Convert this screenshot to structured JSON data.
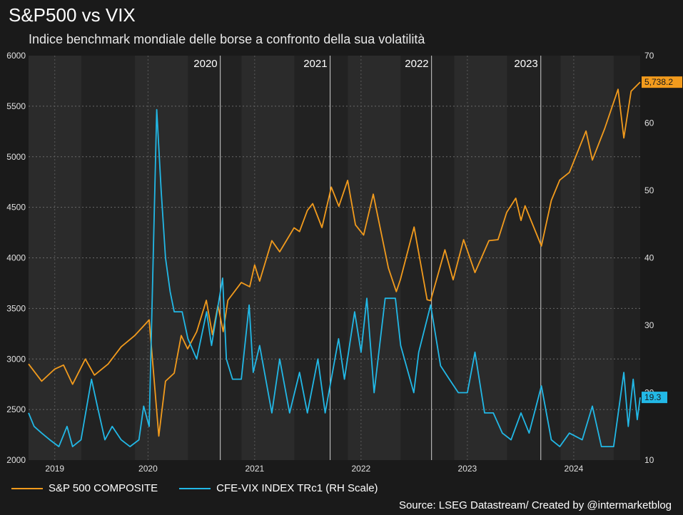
{
  "chart_data": {
    "type": "line",
    "title": "S&P500 vs VIX",
    "subtitle": "Indice benchmark mondiale delle borse a confronto della sua volatilità",
    "source": "Source: LSEG Datastream/ Created by @intermarketblog",
    "left_axis": {
      "ylim": [
        2000,
        6000
      ],
      "ticks": [
        "6000",
        "5500",
        "5000",
        "4500",
        "4000",
        "3500",
        "3000",
        "2500",
        "2000"
      ]
    },
    "right_axis": {
      "ylim": [
        10,
        70
      ],
      "ticks": [
        "70",
        "60",
        "50",
        "40",
        "30",
        "20",
        "10"
      ]
    },
    "x_range": [
      "2019-01-01",
      "2024-09-30"
    ],
    "x_ticks": [
      "2019",
      "2020",
      "2021",
      "2022",
      "2023",
      "2024"
    ],
    "x_tick_dates": [
      "2019-04-01",
      "2020-02-15",
      "2021-02-15",
      "2022-02-15",
      "2023-02-15",
      "2024-02-15"
    ],
    "shaded_regions": [
      {
        "from": "2019-01-01",
        "to": "2019-07-01"
      },
      {
        "from": "2020-01-01",
        "to": "2020-07-01"
      },
      {
        "from": "2021-01-01",
        "to": "2021-07-01"
      },
      {
        "from": "2022-01-01",
        "to": "2022-07-01"
      },
      {
        "from": "2023-01-01",
        "to": "2023-07-01"
      },
      {
        "from": "2024-01-01",
        "to": "2024-07-01"
      }
    ],
    "vertical_lines": [
      {
        "date": "2020-10-20",
        "label": "2020"
      },
      {
        "date": "2021-11-01",
        "label": "2021"
      },
      {
        "date": "2022-10-15",
        "label": "2022"
      },
      {
        "date": "2023-10-25",
        "label": "2023"
      }
    ],
    "grid": true,
    "series": [
      {
        "name": "S&P 500 COMPOSITE",
        "axis": "left",
        "color": "#f29b1d",
        "last_label": "5,738.2",
        "points": [
          [
            "2019-01-01",
            2950
          ],
          [
            "2019-02-15",
            2780
          ],
          [
            "2019-04-01",
            2900
          ],
          [
            "2019-05-01",
            2940
          ],
          [
            "2019-06-01",
            2750
          ],
          [
            "2019-07-15",
            3000
          ],
          [
            "2019-08-15",
            2840
          ],
          [
            "2019-10-01",
            2950
          ],
          [
            "2019-11-15",
            3120
          ],
          [
            "2019-12-31",
            3230
          ],
          [
            "2020-02-19",
            3386
          ],
          [
            "2020-03-23",
            2237
          ],
          [
            "2020-04-15",
            2780
          ],
          [
            "2020-05-15",
            2860
          ],
          [
            "2020-06-08",
            3232
          ],
          [
            "2020-06-30",
            3100
          ],
          [
            "2020-07-31",
            3270
          ],
          [
            "2020-09-02",
            3580
          ],
          [
            "2020-09-23",
            3240
          ],
          [
            "2020-10-12",
            3530
          ],
          [
            "2020-10-30",
            3270
          ],
          [
            "2020-11-15",
            3580
          ],
          [
            "2020-12-31",
            3756
          ],
          [
            "2021-01-29",
            3714
          ],
          [
            "2021-02-15",
            3930
          ],
          [
            "2021-03-04",
            3770
          ],
          [
            "2021-04-15",
            4170
          ],
          [
            "2021-05-12",
            4060
          ],
          [
            "2021-06-30",
            4297
          ],
          [
            "2021-07-19",
            4260
          ],
          [
            "2021-08-15",
            4470
          ],
          [
            "2021-09-02",
            4536
          ],
          [
            "2021-10-04",
            4300
          ],
          [
            "2021-11-05",
            4700
          ],
          [
            "2021-12-01",
            4510
          ],
          [
            "2021-12-31",
            4766
          ],
          [
            "2022-01-27",
            4326
          ],
          [
            "2022-02-24",
            4225
          ],
          [
            "2022-03-29",
            4630
          ],
          [
            "2022-05-20",
            3900
          ],
          [
            "2022-06-16",
            3666
          ],
          [
            "2022-06-30",
            3785
          ],
          [
            "2022-08-16",
            4305
          ],
          [
            "2022-09-30",
            3585
          ],
          [
            "2022-10-12",
            3577
          ],
          [
            "2022-11-30",
            4080
          ],
          [
            "2022-12-28",
            3783
          ],
          [
            "2023-02-02",
            4180
          ],
          [
            "2023-03-13",
            3855
          ],
          [
            "2023-04-30",
            4170
          ],
          [
            "2023-05-31",
            4180
          ],
          [
            "2023-06-30",
            4450
          ],
          [
            "2023-07-31",
            4590
          ],
          [
            "2023-08-18",
            4370
          ],
          [
            "2023-09-01",
            4515
          ],
          [
            "2023-10-27",
            4117
          ],
          [
            "2023-11-30",
            4568
          ],
          [
            "2023-12-29",
            4770
          ],
          [
            "2024-01-31",
            4845
          ],
          [
            "2024-03-28",
            5254
          ],
          [
            "2024-04-19",
            4967
          ],
          [
            "2024-05-31",
            5277
          ],
          [
            "2024-07-16",
            5667
          ],
          [
            "2024-08-05",
            5186
          ],
          [
            "2024-08-30",
            5648
          ],
          [
            "2024-09-30",
            5738
          ]
        ]
      },
      {
        "name": "CFE-VIX INDEX TRc1 (RH Scale)",
        "axis": "right",
        "color": "#22b8e6",
        "last_label": "19.3",
        "points": [
          [
            "2019-01-01",
            17
          ],
          [
            "2019-01-20",
            15
          ],
          [
            "2019-02-15",
            14
          ],
          [
            "2019-03-15",
            13
          ],
          [
            "2019-04-15",
            12
          ],
          [
            "2019-05-13",
            15
          ],
          [
            "2019-06-01",
            12
          ],
          [
            "2019-06-30",
            13
          ],
          [
            "2019-08-05",
            22
          ],
          [
            "2019-08-25",
            18
          ],
          [
            "2019-09-20",
            13
          ],
          [
            "2019-10-15",
            15
          ],
          [
            "2019-11-15",
            13
          ],
          [
            "2019-12-15",
            12
          ],
          [
            "2020-01-15",
            13
          ],
          [
            "2020-01-31",
            18
          ],
          [
            "2020-02-19",
            15
          ],
          [
            "2020-03-16",
            62
          ],
          [
            "2020-03-31",
            50
          ],
          [
            "2020-04-15",
            40
          ],
          [
            "2020-05-01",
            35
          ],
          [
            "2020-05-15",
            32
          ],
          [
            "2020-06-11",
            32
          ],
          [
            "2020-07-01",
            28
          ],
          [
            "2020-07-31",
            25
          ],
          [
            "2020-09-03",
            32
          ],
          [
            "2020-09-20",
            27
          ],
          [
            "2020-10-28",
            37
          ],
          [
            "2020-11-10",
            25
          ],
          [
            "2020-12-01",
            22
          ],
          [
            "2020-12-31",
            22
          ],
          [
            "2021-01-27",
            33
          ],
          [
            "2021-02-10",
            23
          ],
          [
            "2021-03-04",
            27
          ],
          [
            "2021-04-15",
            17
          ],
          [
            "2021-05-12",
            25
          ],
          [
            "2021-06-15",
            17
          ],
          [
            "2021-07-19",
            23
          ],
          [
            "2021-08-15",
            17
          ],
          [
            "2021-09-20",
            25
          ],
          [
            "2021-10-15",
            17
          ],
          [
            "2021-11-30",
            28
          ],
          [
            "2021-12-20",
            22
          ],
          [
            "2022-01-24",
            32
          ],
          [
            "2022-02-15",
            26
          ],
          [
            "2022-03-07",
            34
          ],
          [
            "2022-04-01",
            20
          ],
          [
            "2022-05-09",
            34
          ],
          [
            "2022-06-13",
            34
          ],
          [
            "2022-07-01",
            27
          ],
          [
            "2022-08-15",
            20
          ],
          [
            "2022-09-01",
            26
          ],
          [
            "2022-10-12",
            33
          ],
          [
            "2022-11-15",
            24
          ],
          [
            "2022-12-15",
            22
          ],
          [
            "2023-01-15",
            20
          ],
          [
            "2023-02-15",
            20
          ],
          [
            "2023-03-13",
            26
          ],
          [
            "2023-04-15",
            17
          ],
          [
            "2023-05-15",
            17
          ],
          [
            "2023-06-15",
            14
          ],
          [
            "2023-07-15",
            13
          ],
          [
            "2023-08-18",
            17
          ],
          [
            "2023-09-15",
            14
          ],
          [
            "2023-10-27",
            21
          ],
          [
            "2023-11-30",
            13
          ],
          [
            "2023-12-29",
            12
          ],
          [
            "2024-01-31",
            14
          ],
          [
            "2024-03-15",
            13
          ],
          [
            "2024-04-19",
            18
          ],
          [
            "2024-05-20",
            12
          ],
          [
            "2024-06-15",
            12
          ],
          [
            "2024-07-01",
            12
          ],
          [
            "2024-08-05",
            23
          ],
          [
            "2024-08-20",
            15
          ],
          [
            "2024-09-06",
            22
          ],
          [
            "2024-09-20",
            16
          ],
          [
            "2024-09-30",
            19.3
          ]
        ]
      }
    ]
  },
  "legend": {
    "items": [
      {
        "label": "S&P 500 COMPOSITE",
        "color": "#f29b1d"
      },
      {
        "label": "CFE-VIX INDEX TRc1 (RH Scale)",
        "color": "#22b8e6"
      }
    ]
  }
}
